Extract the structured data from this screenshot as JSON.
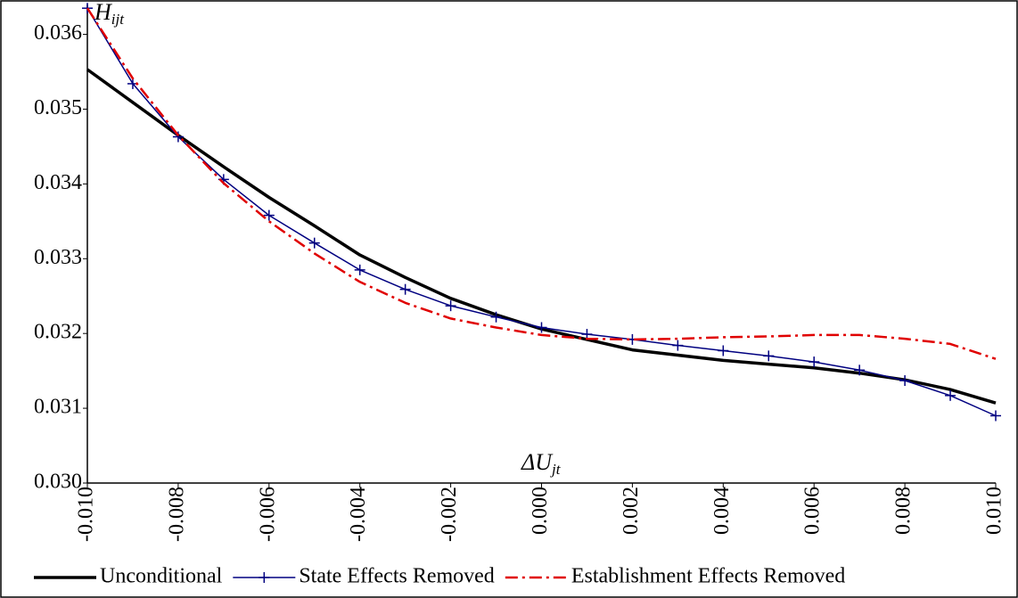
{
  "chart_data": {
    "type": "line",
    "y_label": "H",
    "y_label_sub": "ijt",
    "x_label": "ΔU",
    "x_label_sub": "jt",
    "x": [
      -0.01,
      -0.009,
      -0.008,
      -0.007,
      -0.006,
      -0.005,
      -0.004,
      -0.003,
      -0.002,
      -0.001,
      0.0,
      0.001,
      0.002,
      0.003,
      0.004,
      0.005,
      0.006,
      0.007,
      0.008,
      0.009,
      0.01
    ],
    "xlim": [
      -0.01,
      0.01
    ],
    "xticks": [
      {
        "value": -0.01,
        "label": "-0.010"
      },
      {
        "value": -0.008,
        "label": "-0.008"
      },
      {
        "value": -0.006,
        "label": "-0.006"
      },
      {
        "value": -0.004,
        "label": "-0.004"
      },
      {
        "value": -0.002,
        "label": "-0.002"
      },
      {
        "value": 0.0,
        "label": "0.000"
      },
      {
        "value": 0.002,
        "label": "0.002"
      },
      {
        "value": 0.004,
        "label": "0.004"
      },
      {
        "value": 0.006,
        "label": "0.006"
      },
      {
        "value": 0.008,
        "label": "0.008"
      },
      {
        "value": 0.01,
        "label": "0.010"
      }
    ],
    "ylim": [
      0.03,
      0.0364
    ],
    "yticks": [
      {
        "value": 0.03,
        "label": "0.030"
      },
      {
        "value": 0.031,
        "label": "0.031"
      },
      {
        "value": 0.032,
        "label": "0.032"
      },
      {
        "value": 0.033,
        "label": "0.033"
      },
      {
        "value": 0.034,
        "label": "0.034"
      },
      {
        "value": 0.035,
        "label": "0.035"
      },
      {
        "value": 0.036,
        "label": "0.036"
      }
    ],
    "legend": "bottom",
    "series": [
      {
        "name": "Unconditional",
        "color": "#000000",
        "style": "solid",
        "values": [
          0.03553,
          0.03509,
          0.03465,
          0.03423,
          0.03382,
          0.03344,
          0.03305,
          0.03275,
          0.03247,
          0.03225,
          0.03206,
          0.03192,
          0.03178,
          0.03171,
          0.03164,
          0.03159,
          0.03154,
          0.03147,
          0.03138,
          0.03125,
          0.03107
        ]
      },
      {
        "name": "State Effects Removed",
        "color": "#000080",
        "style": "plus",
        "values": [
          0.03635,
          0.03534,
          0.03463,
          0.03406,
          0.03358,
          0.03321,
          0.03285,
          0.03259,
          0.03237,
          0.03222,
          0.03208,
          0.03199,
          0.03192,
          0.03184,
          0.03177,
          0.0317,
          0.03162,
          0.03151,
          0.03137,
          0.03117,
          0.0309
        ]
      },
      {
        "name": "Establishment Effects Removed",
        "color": "#e00000",
        "style": "dashdot",
        "values": [
          0.03635,
          0.03541,
          0.03465,
          0.03401,
          0.0335,
          0.03307,
          0.03269,
          0.03241,
          0.0322,
          0.03208,
          0.03198,
          0.03193,
          0.03192,
          0.03193,
          0.03195,
          0.03196,
          0.03198,
          0.03198,
          0.03193,
          0.03186,
          0.03166
        ]
      }
    ]
  }
}
